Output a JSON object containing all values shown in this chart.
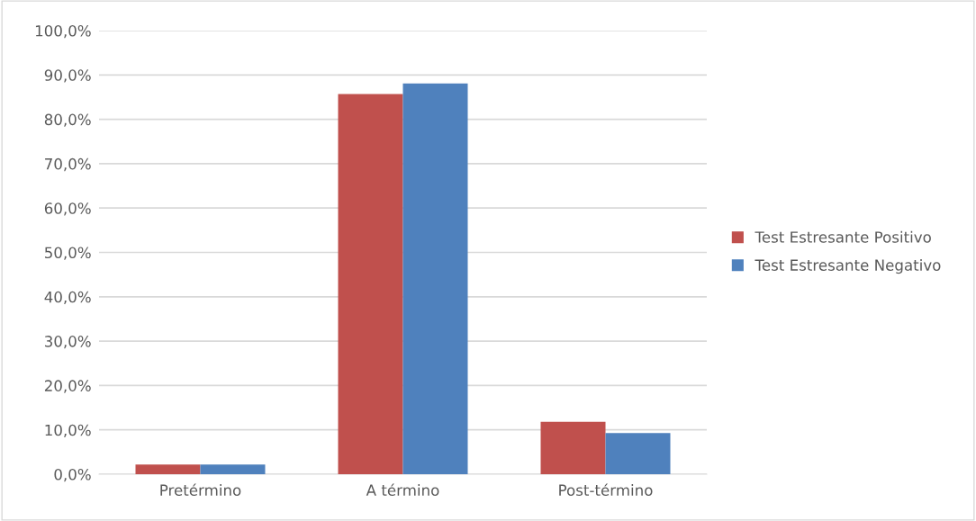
{
  "chart_data": {
    "type": "bar",
    "categories": [
      "Pretérmino",
      "A término",
      "Post-término"
    ],
    "series": [
      {
        "name": "Test Estresante Positivo",
        "color": "#c0504d",
        "values": [
          2.2,
          85.7,
          11.8
        ]
      },
      {
        "name": "Test Estresante Negativo",
        "color": "#4f81bd",
        "values": [
          2.2,
          88.1,
          9.3
        ]
      }
    ],
    "ylim": [
      0,
      100
    ],
    "yticks": [
      {
        "value": 0,
        "label": "0,0%"
      },
      {
        "value": 10,
        "label": "10,0%"
      },
      {
        "value": 20,
        "label": "20,0%"
      },
      {
        "value": 30,
        "label": "30,0%"
      },
      {
        "value": 40,
        "label": "40,0%"
      },
      {
        "value": 50,
        "label": "50,0%"
      },
      {
        "value": 60,
        "label": "60,0%"
      },
      {
        "value": 70,
        "label": "70,0%"
      },
      {
        "value": 80,
        "label": "80,0%"
      },
      {
        "value": 90,
        "label": "90,0%"
      },
      {
        "value": 100,
        "label": "100,0%"
      }
    ],
    "grid": "y",
    "legend": "right"
  }
}
